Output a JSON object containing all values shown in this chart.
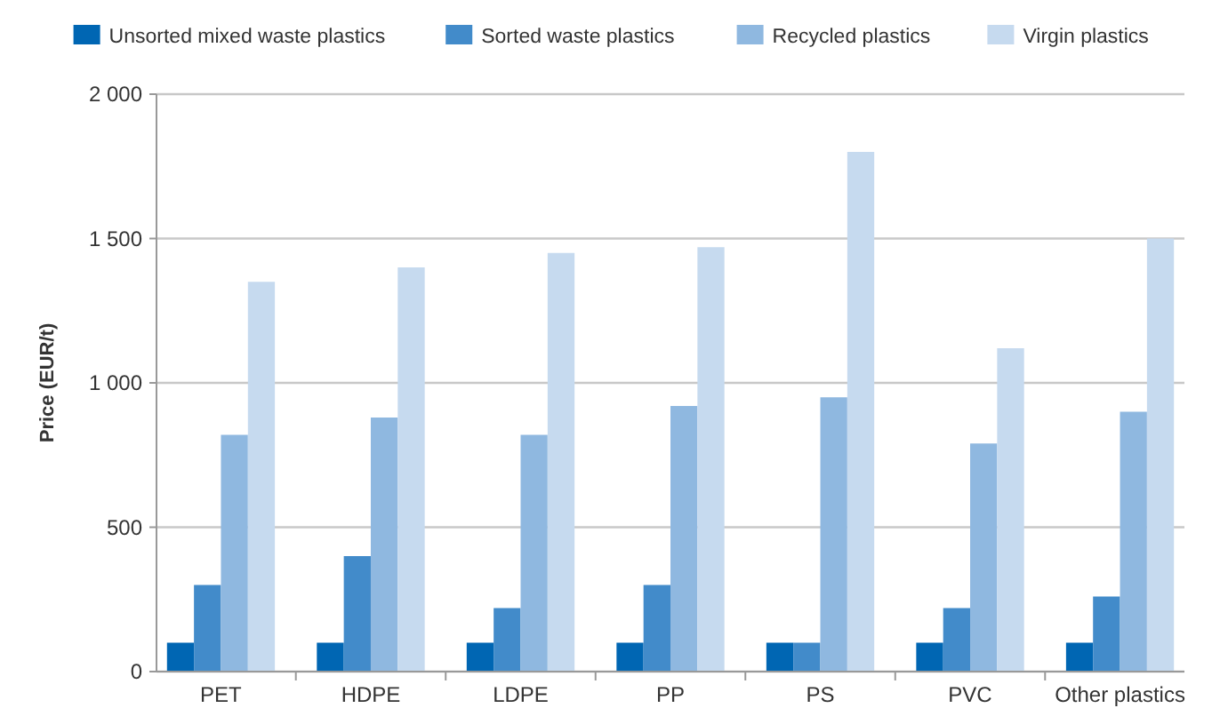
{
  "chart_data": {
    "type": "bar",
    "ylabel": "Price (EUR/t)",
    "categories": [
      "PET",
      "HDPE",
      "LDPE",
      "PP",
      "PS",
      "PVC",
      "Other plastics"
    ],
    "series": [
      {
        "name": "Unsorted mixed waste plastics",
        "color": "#0066b3",
        "values": [
          100,
          100,
          100,
          100,
          100,
          100,
          100
        ]
      },
      {
        "name": "Sorted waste plastics",
        "color": "#428bca",
        "values": [
          300,
          400,
          220,
          300,
          100,
          220,
          260
        ]
      },
      {
        "name": "Recycled plastics",
        "color": "#8fb8e0",
        "values": [
          820,
          880,
          820,
          920,
          950,
          790,
          900
        ]
      },
      {
        "name": "Virgin plastics",
        "color": "#c6daef",
        "values": [
          1350,
          1400,
          1450,
          1470,
          1800,
          1120,
          1500
        ]
      }
    ],
    "ylim": [
      0,
      2000
    ],
    "yticks": [
      {
        "value": 0,
        "label": "0"
      },
      {
        "value": 500,
        "label": "500"
      },
      {
        "value": 1000,
        "label": "1 000"
      },
      {
        "value": 1500,
        "label": "1 500"
      },
      {
        "value": 2000,
        "label": "2 000"
      }
    ],
    "grid": "y",
    "legend": "top"
  }
}
